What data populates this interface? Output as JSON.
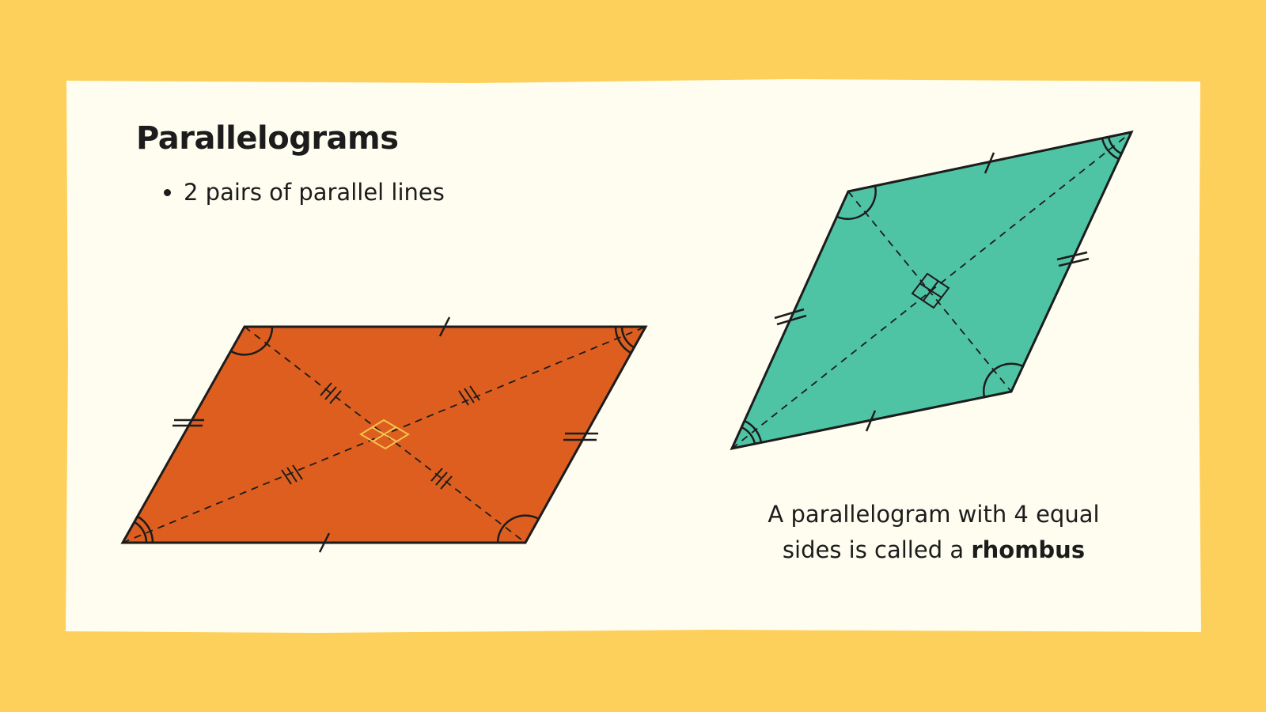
{
  "title": "Parallelograms",
  "bullets": [
    "2 pairs of parallel lines"
  ],
  "caption": {
    "line1": "A parallelogram with 4 equal",
    "line2": "sides is called a",
    "emphasis": "rhombus"
  }
}
